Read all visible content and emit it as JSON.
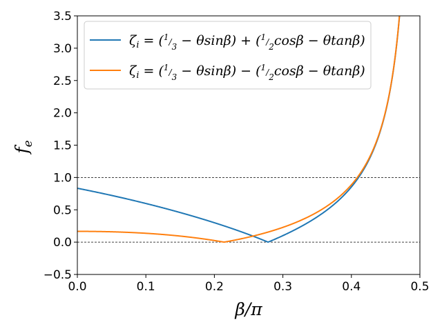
{
  "chart_data": {
    "type": "line",
    "title": "",
    "xlabel": "β/π",
    "ylabel": "f",
    "ylabel_subscript": "e",
    "xlim": [
      0.0,
      0.5
    ],
    "ylim": [
      -0.5,
      3.5
    ],
    "x_ticks": [
      "0.0",
      "0.1",
      "0.2",
      "0.3",
      "0.4",
      "0.5"
    ],
    "y_ticks": [
      "−0.5",
      "0.0",
      "0.5",
      "1.0",
      "1.5",
      "2.0",
      "2.5",
      "3.0",
      "3.5"
    ],
    "reference_lines": [
      1.0,
      0.0
    ],
    "grid": false,
    "legend_position": "top-left",
    "theta": 0.333,
    "series": [
      {
        "name": "ζi = (1/3 − θ sinβ) + (1/2 cosβ − θ tanβ)",
        "color": "#1f77b4",
        "formula": "plus",
        "points": [
          [
            0.0,
            0.62
          ],
          [
            0.05,
            0.44
          ],
          [
            0.1,
            0.27
          ],
          [
            0.15,
            0.13
          ],
          [
            0.2,
            0.02
          ],
          [
            0.207,
            0.0
          ],
          [
            0.25,
            0.1
          ],
          [
            0.3,
            0.24
          ],
          [
            0.35,
            0.41
          ],
          [
            0.4,
            0.69
          ],
          [
            0.43,
            1.0
          ],
          [
            0.45,
            1.43
          ],
          [
            0.47,
            2.46
          ],
          [
            0.48,
            3.5
          ]
        ]
      },
      {
        "name": "ζi = (1/3 − θ sinβ) − (1/2 cosβ − θ tanβ)",
        "color": "#ff7f0e",
        "formula": "minus",
        "points": [
          [
            0.0,
            0.12
          ],
          [
            0.05,
            0.11
          ],
          [
            0.1,
            0.08
          ],
          [
            0.15,
            0.05
          ],
          [
            0.2,
            0.01
          ],
          [
            0.207,
            0.0
          ],
          [
            0.25,
            0.06
          ],
          [
            0.3,
            0.15
          ],
          [
            0.35,
            0.3
          ],
          [
            0.4,
            0.56
          ],
          [
            0.43,
            0.88
          ],
          [
            0.45,
            1.33
          ],
          [
            0.47,
            2.29
          ],
          [
            0.484,
            3.5
          ]
        ]
      }
    ]
  }
}
